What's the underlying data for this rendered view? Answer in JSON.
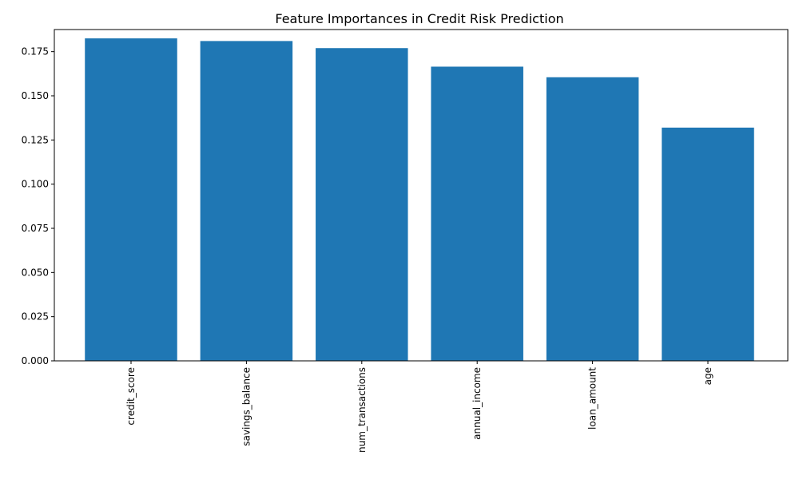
{
  "chart_data": {
    "type": "bar",
    "title": "Feature Importances in Credit Risk Prediction",
    "xlabel": "",
    "ylabel": "",
    "categories": [
      "credit_score",
      "savings_balance",
      "num_transactions",
      "annual_income",
      "loan_amount",
      "age"
    ],
    "values": [
      0.1825,
      0.181,
      0.177,
      0.1665,
      0.1605,
      0.132
    ],
    "ylim": [
      0,
      0.1875
    ],
    "yticks": [
      "0.000",
      "0.025",
      "0.050",
      "0.075",
      "0.100",
      "0.125",
      "0.150",
      "0.175"
    ],
    "bar_color": "#1f77b4",
    "x_tick_rotation": "vertical",
    "grid": false
  }
}
